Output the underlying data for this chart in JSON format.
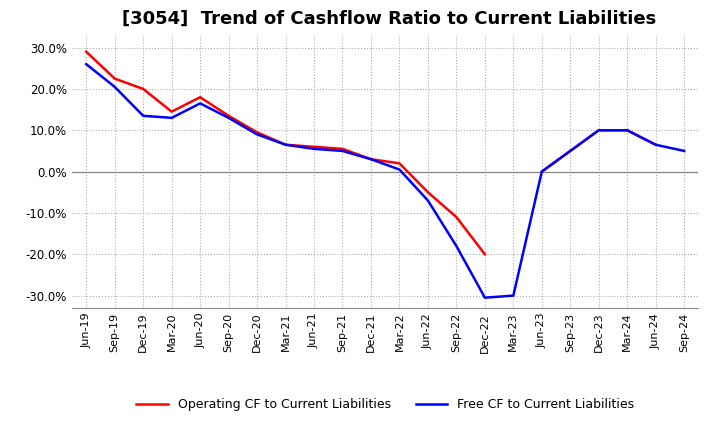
{
  "title": "[3054]  Trend of Cashflow Ratio to Current Liabilities",
  "x_labels": [
    "Jun-19",
    "Sep-19",
    "Dec-19",
    "Mar-20",
    "Jun-20",
    "Sep-20",
    "Dec-20",
    "Mar-21",
    "Jun-21",
    "Sep-21",
    "Dec-21",
    "Mar-22",
    "Jun-22",
    "Sep-22",
    "Dec-22",
    "Mar-23",
    "Jun-23",
    "Sep-23",
    "Dec-23",
    "Mar-24",
    "Jun-24",
    "Sep-24"
  ],
  "operating_cf": [
    29.0,
    22.5,
    20.0,
    14.5,
    18.0,
    13.5,
    9.5,
    6.5,
    6.0,
    5.5,
    3.0,
    2.0,
    -5.0,
    -11.0,
    -20.0,
    null,
    0.0,
    5.0,
    10.0,
    10.0,
    6.5,
    null
  ],
  "free_cf": [
    26.0,
    20.5,
    13.5,
    13.0,
    16.5,
    13.0,
    9.0,
    6.5,
    5.5,
    5.0,
    3.0,
    0.5,
    -7.0,
    -18.0,
    -30.5,
    -30.0,
    0.0,
    5.0,
    10.0,
    10.0,
    6.5,
    5.0
  ],
  "ylim": [
    -33,
    33
  ],
  "yticks": [
    -30,
    -20,
    -10,
    0,
    10,
    20,
    30
  ],
  "operating_color": "#ff0000",
  "free_color": "#0000ff",
  "background_color": "#ffffff",
  "grid_color": "#aaaaaa",
  "zero_line_color": "#888888",
  "title_fontsize": 13,
  "legend_op": "Operating CF to Current Liabilities",
  "legend_free": "Free CF to Current Liabilities"
}
